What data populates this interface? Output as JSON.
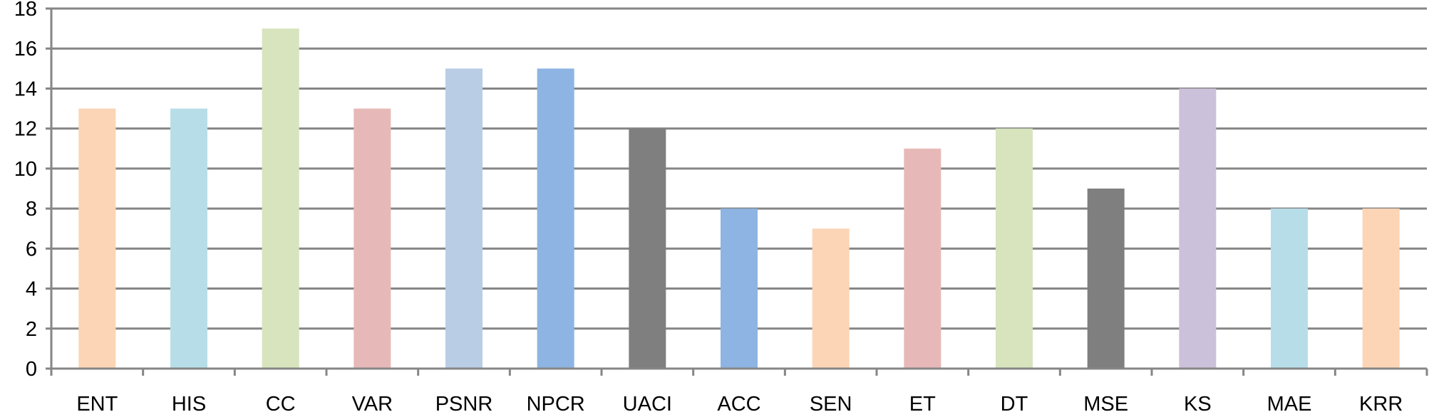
{
  "chart_data": {
    "type": "bar",
    "title": "",
    "xlabel": "",
    "ylabel": "",
    "categories": [
      "ENT",
      "HIS",
      "CC",
      "VAR",
      "PSNR",
      "NPCR",
      "UACI",
      "ACC",
      "SEN",
      "ET",
      "DT",
      "MSE",
      "KS",
      "MAE",
      "KRR"
    ],
    "values": [
      13,
      13,
      17,
      13,
      15,
      15,
      12,
      8,
      7,
      11,
      12,
      9,
      14,
      8,
      8
    ],
    "colors": [
      "#FBD5B5",
      "#B7DEE8",
      "#D7E4BD",
      "#E6B9B8",
      "#B9CDE5",
      "#8DB4E2",
      "#7F7F7F",
      "#8DB4E2",
      "#FBD5B5",
      "#E6B9B8",
      "#D7E4BD",
      "#7F7F7F",
      "#CCC1DA",
      "#B7DEE8",
      "#FBD5B5"
    ],
    "ylim": [
      0,
      18
    ],
    "yticks": [
      0,
      2,
      4,
      6,
      8,
      10,
      12,
      14,
      16,
      18
    ],
    "grid": true,
    "gridline_color": "#868686",
    "legend": "none"
  }
}
